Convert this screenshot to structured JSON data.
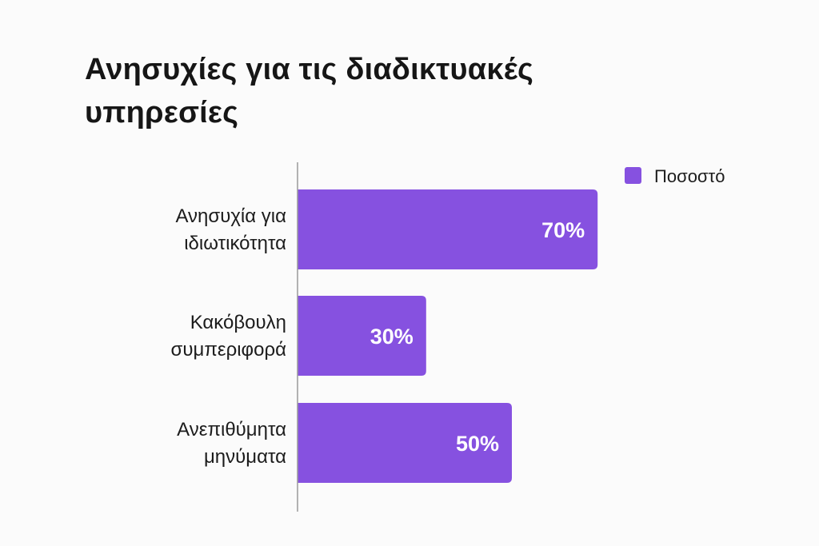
{
  "chart_data": {
    "type": "bar",
    "orientation": "horizontal",
    "title": "Ανησυχίες για τις διαδικτυακές υπηρεσίες",
    "categories": [
      [
        "Ανησυχία για",
        "ιδιωτικότητα"
      ],
      [
        "Κακόβουλη",
        "συμπεριφορά"
      ],
      [
        "Ανεπιθύμητα",
        "μηνύματα"
      ]
    ],
    "series": [
      {
        "name": "Ποσοστό",
        "values": [
          70,
          30,
          50
        ],
        "color": "#8651e0"
      }
    ],
    "data_labels": [
      "70%",
      "30%",
      "50%"
    ],
    "xlim": [
      0,
      100
    ],
    "grid": false,
    "legend": "top-right"
  }
}
